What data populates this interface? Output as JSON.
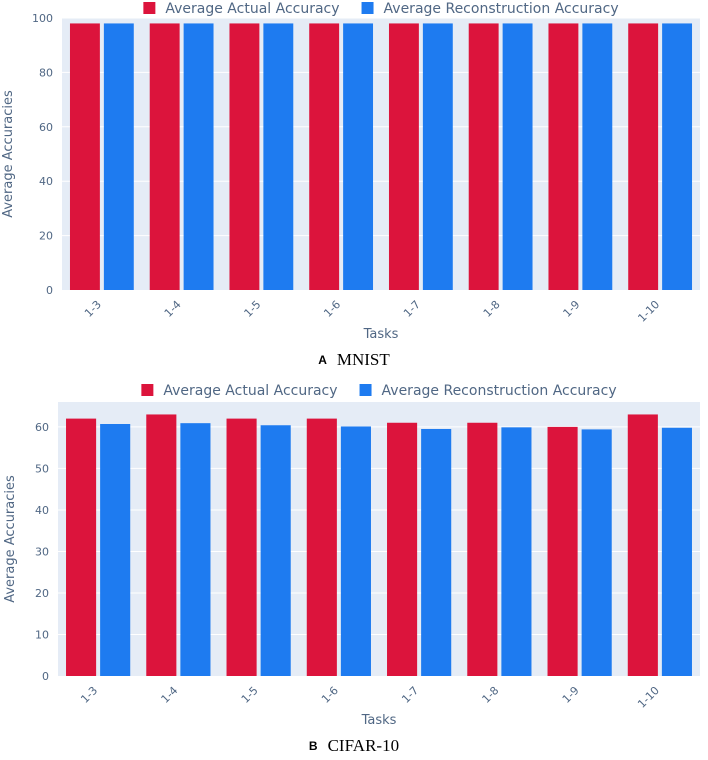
{
  "colors": {
    "actual": "#dc143c",
    "reconstruction": "#1e7bf0",
    "plot_bg": "#e5ecf6",
    "grid": "#ffffff",
    "text": "#506784"
  },
  "captions": [
    {
      "letter": "A",
      "text": "MNIST"
    },
    {
      "letter": "B",
      "text": "CIFAR-10"
    }
  ],
  "chart_data": [
    {
      "type": "bar",
      "caption": "MNIST",
      "categories": [
        "1-3",
        "1-4",
        "1-5",
        "1-6",
        "1-7",
        "1-8",
        "1-9",
        "1-10"
      ],
      "series": [
        {
          "name": "Average Actual Accuracy",
          "values": [
            98,
            98,
            98,
            98,
            98,
            98,
            98,
            98
          ]
        },
        {
          "name": "Average Reconstruction Accuracy",
          "values": [
            98,
            98,
            98,
            98,
            98,
            98,
            98,
            98
          ]
        }
      ],
      "xlabel": "Tasks",
      "ylabel": "Average Accuracies",
      "ylim": [
        0,
        100
      ],
      "yticks": [
        0,
        20,
        40,
        60,
        80,
        100
      ],
      "legend": "top-center",
      "grid": true
    },
    {
      "type": "bar",
      "caption": "CIFAR-10",
      "categories": [
        "1-3",
        "1-4",
        "1-5",
        "1-6",
        "1-7",
        "1-8",
        "1-9",
        "1-10"
      ],
      "series": [
        {
          "name": "Average Actual Accuracy",
          "values": [
            62,
            63,
            62,
            62,
            61,
            61,
            60,
            63
          ]
        },
        {
          "name": "Average Reconstruction Accuracy",
          "values": [
            60.7,
            60.9,
            60.4,
            60.1,
            59.5,
            59.9,
            59.4,
            59.8
          ]
        }
      ],
      "xlabel": "Tasks",
      "ylabel": "Average Accuracies",
      "ylim": [
        0,
        66
      ],
      "yticks": [
        0,
        10,
        20,
        30,
        40,
        50,
        60
      ],
      "legend": "top-center",
      "grid": true
    }
  ]
}
